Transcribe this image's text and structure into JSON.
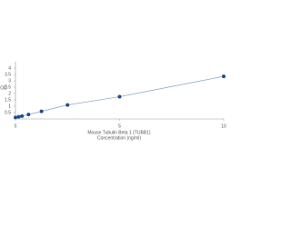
{
  "chart_data": {
    "type": "scatter",
    "x_label": "Mouse Tubulin Beta 1 (TUBB1)",
    "x_label_2": "Concentration (ng/ml)",
    "y_label": "OD",
    "series": [
      {
        "color": "#1f4e8c",
        "line_color": "#8aa3cc",
        "x": [
          0,
          0.156,
          0.312,
          0.625,
          1.25,
          2.5,
          5,
          10
        ],
        "values": [
          0.12,
          0.17,
          0.22,
          0.35,
          0.6,
          1.1,
          1.75,
          3.35
        ]
      }
    ],
    "xlim": [
      0,
      10
    ],
    "xticks": [
      0,
      5,
      10
    ],
    "ylim": [
      0,
      4.5
    ],
    "yticks": [
      0.5,
      1,
      1.5,
      2,
      2.5,
      3,
      3.5,
      4
    ],
    "grid": false
  }
}
